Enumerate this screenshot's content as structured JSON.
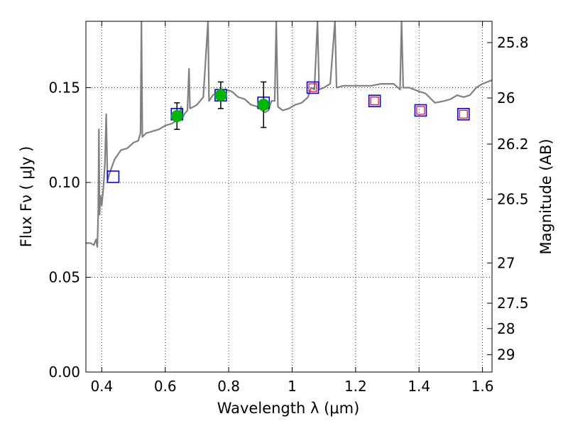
{
  "chart_data": {
    "type": "scatter",
    "xlabel": "Wavelength  λ (μm)",
    "ylabel": "Flux  Fν  ( μJy )",
    "ylabel_right": "Magnitude (AB)",
    "xlim": [
      0.35,
      1.63
    ],
    "ylim": [
      0.0,
      0.185
    ],
    "x_ticks": [
      0.4,
      0.6,
      0.8,
      1.0,
      1.2,
      1.4,
      1.6
    ],
    "x_tick_labels": [
      "0.4",
      "0.6",
      "0.8",
      "1",
      "1.2",
      "1.4",
      "1.6"
    ],
    "y_ticks": [
      0.0,
      0.05,
      0.1,
      0.15
    ],
    "y_tick_labels": [
      "0.00",
      "0.05",
      "0.10",
      "0.15"
    ],
    "right_axis_ticks": [
      {
        "label": "25.8",
        "mag": 25.8
      },
      {
        "label": "26",
        "mag": 26.0
      },
      {
        "label": "26.2",
        "mag": 26.2
      },
      {
        "label": "26.5",
        "mag": 26.5
      },
      {
        "label": "27",
        "mag": 27.0
      },
      {
        "label": "27.5",
        "mag": 27.5
      },
      {
        "label": "28",
        "mag": 28.0
      },
      {
        "label": "29",
        "mag": 29.0
      }
    ],
    "grid": true,
    "colors": {
      "spectrum": "#808080",
      "observed": "#00b400",
      "model_box": "#0000ff",
      "inner_box": "#ff0000",
      "errorbar": "#000000"
    },
    "series": [
      {
        "type": "line",
        "points": [
          [
            0.35,
            0.068
          ],
          [
            0.365,
            0.068
          ],
          [
            0.375,
            0.067
          ],
          [
            0.382,
            0.07
          ],
          [
            0.386,
            0.066
          ],
          [
            0.389,
            0.085
          ],
          [
            0.391,
            0.128
          ],
          [
            0.393,
            0.083
          ],
          [
            0.396,
            0.093
          ],
          [
            0.4,
            0.088
          ],
          [
            0.405,
            0.097
          ],
          [
            0.41,
            0.11
          ],
          [
            0.414,
            0.136
          ],
          [
            0.418,
            0.101
          ],
          [
            0.425,
            0.105
          ],
          [
            0.44,
            0.112
          ],
          [
            0.46,
            0.117
          ],
          [
            0.48,
            0.118
          ],
          [
            0.5,
            0.121
          ],
          [
            0.515,
            0.122
          ],
          [
            0.522,
            0.126
          ],
          [
            0.525,
            0.185
          ],
          [
            0.528,
            0.124
          ],
          [
            0.54,
            0.126
          ],
          [
            0.56,
            0.127
          ],
          [
            0.58,
            0.128
          ],
          [
            0.6,
            0.13
          ],
          [
            0.62,
            0.131
          ],
          [
            0.64,
            0.133
          ],
          [
            0.65,
            0.14
          ],
          [
            0.652,
            0.133
          ],
          [
            0.66,
            0.136
          ],
          [
            0.67,
            0.138
          ],
          [
            0.675,
            0.16
          ],
          [
            0.678,
            0.139
          ],
          [
            0.69,
            0.14
          ],
          [
            0.7,
            0.141
          ],
          [
            0.72,
            0.145
          ],
          [
            0.735,
            0.185
          ],
          [
            0.738,
            0.143
          ],
          [
            0.75,
            0.146
          ],
          [
            0.77,
            0.148
          ],
          [
            0.79,
            0.149
          ],
          [
            0.81,
            0.148
          ],
          [
            0.83,
            0.145
          ],
          [
            0.85,
            0.144
          ],
          [
            0.87,
            0.141
          ],
          [
            0.89,
            0.14
          ],
          [
            0.905,
            0.138
          ],
          [
            0.915,
            0.137
          ],
          [
            0.925,
            0.138
          ],
          [
            0.935,
            0.143
          ],
          [
            0.945,
            0.143
          ],
          [
            0.95,
            0.185
          ],
          [
            0.955,
            0.14
          ],
          [
            0.97,
            0.138
          ],
          [
            0.99,
            0.139
          ],
          [
            1.01,
            0.141
          ],
          [
            1.03,
            0.142
          ],
          [
            1.05,
            0.145
          ],
          [
            1.06,
            0.15
          ],
          [
            1.07,
            0.149
          ],
          [
            1.08,
            0.185
          ],
          [
            1.085,
            0.149
          ],
          [
            1.1,
            0.15
          ],
          [
            1.12,
            0.152
          ],
          [
            1.135,
            0.185
          ],
          [
            1.14,
            0.15
          ],
          [
            1.16,
            0.151
          ],
          [
            1.18,
            0.151
          ],
          [
            1.2,
            0.151
          ],
          [
            1.22,
            0.151
          ],
          [
            1.25,
            0.151
          ],
          [
            1.28,
            0.152
          ],
          [
            1.3,
            0.152
          ],
          [
            1.32,
            0.152
          ],
          [
            1.34,
            0.149
          ],
          [
            1.345,
            0.185
          ],
          [
            1.35,
            0.15
          ],
          [
            1.37,
            0.15
          ],
          [
            1.4,
            0.148
          ],
          [
            1.42,
            0.147
          ],
          [
            1.45,
            0.142
          ],
          [
            1.48,
            0.143
          ],
          [
            1.5,
            0.144
          ],
          [
            1.52,
            0.146
          ],
          [
            1.54,
            0.145
          ],
          [
            1.56,
            0.146
          ],
          [
            1.58,
            0.15
          ],
          [
            1.6,
            0.152
          ],
          [
            1.63,
            0.154
          ]
        ]
      },
      {
        "type": "scatter",
        "marker": "circle-with-errorbar",
        "points": [
          {
            "x": 0.637,
            "y": 0.135,
            "err": 0.007
          },
          {
            "x": 0.775,
            "y": 0.146,
            "err": 0.007
          },
          {
            "x": 0.91,
            "y": 0.141,
            "err": 0.012
          }
        ]
      },
      {
        "type": "scatter",
        "marker": "open-square",
        "points": [
          {
            "x": 0.436,
            "y": 0.103
          },
          {
            "x": 0.637,
            "y": 0.136
          },
          {
            "x": 0.775,
            "y": 0.146
          },
          {
            "x": 0.91,
            "y": 0.142
          },
          {
            "x": 1.065,
            "y": 0.15
          },
          {
            "x": 1.26,
            "y": 0.143
          },
          {
            "x": 1.405,
            "y": 0.138
          },
          {
            "x": 1.54,
            "y": 0.136
          }
        ]
      },
      {
        "type": "scatter",
        "marker": "small-open-square",
        "points": [
          {
            "x": 1.065,
            "y": 0.15
          },
          {
            "x": 1.26,
            "y": 0.143
          },
          {
            "x": 1.405,
            "y": 0.138
          },
          {
            "x": 1.54,
            "y": 0.136
          }
        ]
      }
    ]
  }
}
